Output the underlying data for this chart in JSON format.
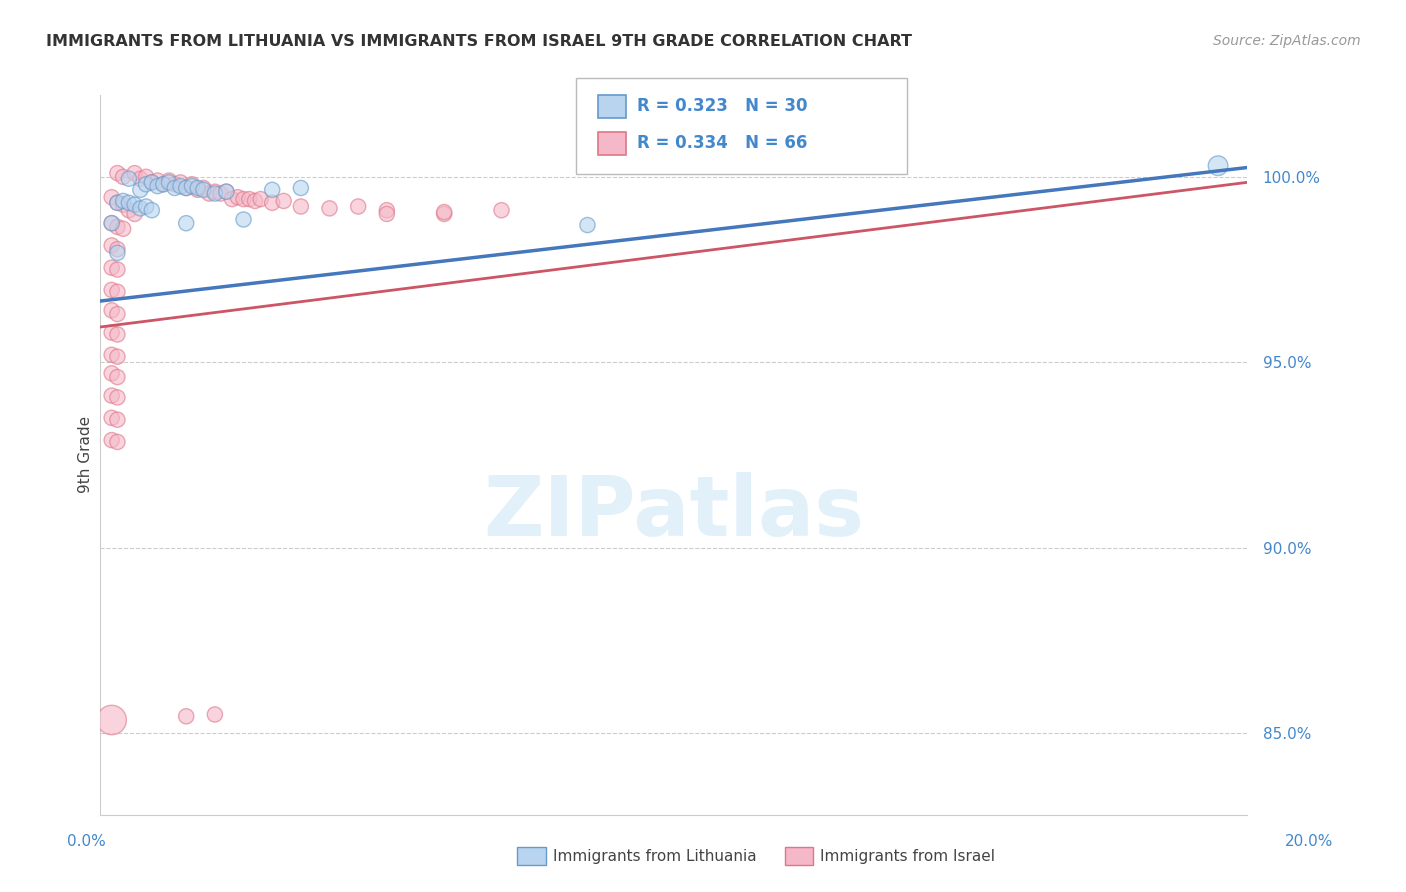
{
  "title": "IMMIGRANTS FROM LITHUANIA VS IMMIGRANTS FROM ISRAEL 9TH GRADE CORRELATION CHART",
  "source": "Source: ZipAtlas.com",
  "ylabel": "9th Grade",
  "legend1_label": "Immigrants from Lithuania",
  "legend2_label": "Immigrants from Israel",
  "r1": "0.323",
  "n1": "30",
  "r2": "0.334",
  "n2": "66",
  "color_blue_fill": "#b8d4ee",
  "color_pink_fill": "#f5b8c8",
  "color_blue_edge": "#6699cc",
  "color_pink_edge": "#dd7788",
  "color_blue_line": "#4477bb",
  "color_pink_line": "#cc5566",
  "color_blue_text": "#4488cc",
  "color_gray_text": "#333333",
  "color_source": "#999999",
  "xlim": [
    0.0,
    0.2
  ],
  "ylim": [
    0.828,
    1.022
  ],
  "yticks": [
    0.85,
    0.9,
    0.95,
    1.0
  ],
  "ytick_labels": [
    "85.0%",
    "90.0%",
    "95.0%",
    "100.0%"
  ],
  "blue_line_x": [
    0.0,
    0.2
  ],
  "blue_line_y": [
    0.9665,
    1.0025
  ],
  "pink_line_x": [
    0.0,
    0.2
  ],
  "pink_line_y": [
    0.9595,
    0.9985
  ],
  "blue_points": [
    [
      0.005,
      0.9995
    ],
    [
      0.007,
      0.9965
    ],
    [
      0.008,
      0.998
    ],
    [
      0.009,
      0.9985
    ],
    [
      0.01,
      0.9975
    ],
    [
      0.011,
      0.998
    ],
    [
      0.012,
      0.9985
    ],
    [
      0.013,
      0.997
    ],
    [
      0.014,
      0.9975
    ],
    [
      0.015,
      0.997
    ],
    [
      0.016,
      0.9975
    ],
    [
      0.017,
      0.997
    ],
    [
      0.018,
      0.9965
    ],
    [
      0.003,
      0.993
    ],
    [
      0.004,
      0.9935
    ],
    [
      0.005,
      0.993
    ],
    [
      0.006,
      0.9925
    ],
    [
      0.007,
      0.9915
    ],
    [
      0.008,
      0.992
    ],
    [
      0.009,
      0.991
    ],
    [
      0.02,
      0.9955
    ],
    [
      0.022,
      0.996
    ],
    [
      0.03,
      0.9965
    ],
    [
      0.035,
      0.997
    ],
    [
      0.085,
      0.987
    ],
    [
      0.195,
      1.003
    ],
    [
      0.002,
      0.9875
    ],
    [
      0.015,
      0.9875
    ],
    [
      0.025,
      0.9885
    ],
    [
      0.003,
      0.9795
    ]
  ],
  "blue_sizes": [
    120,
    120,
    120,
    120,
    120,
    120,
    120,
    120,
    120,
    120,
    120,
    120,
    120,
    120,
    120,
    120,
    120,
    120,
    120,
    120,
    120,
    120,
    120,
    120,
    120,
    200,
    120,
    120,
    120,
    120
  ],
  "pink_points": [
    [
      0.003,
      1.001
    ],
    [
      0.004,
      1.0
    ],
    [
      0.006,
      1.001
    ],
    [
      0.007,
      0.9995
    ],
    [
      0.008,
      1.0
    ],
    [
      0.009,
      0.9985
    ],
    [
      0.01,
      0.999
    ],
    [
      0.011,
      0.998
    ],
    [
      0.012,
      0.999
    ],
    [
      0.013,
      0.998
    ],
    [
      0.014,
      0.9985
    ],
    [
      0.015,
      0.997
    ],
    [
      0.016,
      0.998
    ],
    [
      0.017,
      0.9965
    ],
    [
      0.018,
      0.997
    ],
    [
      0.019,
      0.9955
    ],
    [
      0.02,
      0.996
    ],
    [
      0.021,
      0.9955
    ],
    [
      0.022,
      0.996
    ],
    [
      0.023,
      0.994
    ],
    [
      0.024,
      0.9945
    ],
    [
      0.025,
      0.994
    ],
    [
      0.026,
      0.994
    ],
    [
      0.027,
      0.9935
    ],
    [
      0.028,
      0.994
    ],
    [
      0.03,
      0.993
    ],
    [
      0.032,
      0.9935
    ],
    [
      0.035,
      0.992
    ],
    [
      0.04,
      0.9915
    ],
    [
      0.045,
      0.992
    ],
    [
      0.05,
      0.991
    ],
    [
      0.06,
      0.99
    ],
    [
      0.002,
      0.9945
    ],
    [
      0.003,
      0.993
    ],
    [
      0.004,
      0.9925
    ],
    [
      0.005,
      0.991
    ],
    [
      0.006,
      0.99
    ],
    [
      0.002,
      0.9875
    ],
    [
      0.003,
      0.9865
    ],
    [
      0.004,
      0.986
    ],
    [
      0.002,
      0.9815
    ],
    [
      0.003,
      0.9805
    ],
    [
      0.002,
      0.9755
    ],
    [
      0.003,
      0.975
    ],
    [
      0.002,
      0.9695
    ],
    [
      0.003,
      0.969
    ],
    [
      0.002,
      0.964
    ],
    [
      0.003,
      0.963
    ],
    [
      0.002,
      0.958
    ],
    [
      0.003,
      0.9575
    ],
    [
      0.002,
      0.952
    ],
    [
      0.003,
      0.9515
    ],
    [
      0.002,
      0.947
    ],
    [
      0.003,
      0.946
    ],
    [
      0.002,
      0.941
    ],
    [
      0.003,
      0.9405
    ],
    [
      0.002,
      0.935
    ],
    [
      0.003,
      0.9345
    ],
    [
      0.002,
      0.929
    ],
    [
      0.003,
      0.9285
    ],
    [
      0.05,
      0.99
    ],
    [
      0.06,
      0.9905
    ],
    [
      0.07,
      0.991
    ],
    [
      0.002,
      0.8535
    ],
    [
      0.015,
      0.8545
    ],
    [
      0.02,
      0.855
    ]
  ],
  "pink_sizes": [
    120,
    120,
    120,
    120,
    120,
    120,
    120,
    120,
    120,
    120,
    120,
    120,
    120,
    120,
    120,
    120,
    120,
    120,
    120,
    120,
    120,
    120,
    120,
    120,
    120,
    120,
    120,
    120,
    120,
    120,
    120,
    120,
    120,
    120,
    120,
    120,
    120,
    120,
    120,
    120,
    120,
    120,
    120,
    120,
    120,
    120,
    120,
    120,
    120,
    120,
    120,
    120,
    120,
    120,
    120,
    120,
    120,
    120,
    120,
    120,
    120,
    120,
    120,
    450,
    120,
    120
  ]
}
